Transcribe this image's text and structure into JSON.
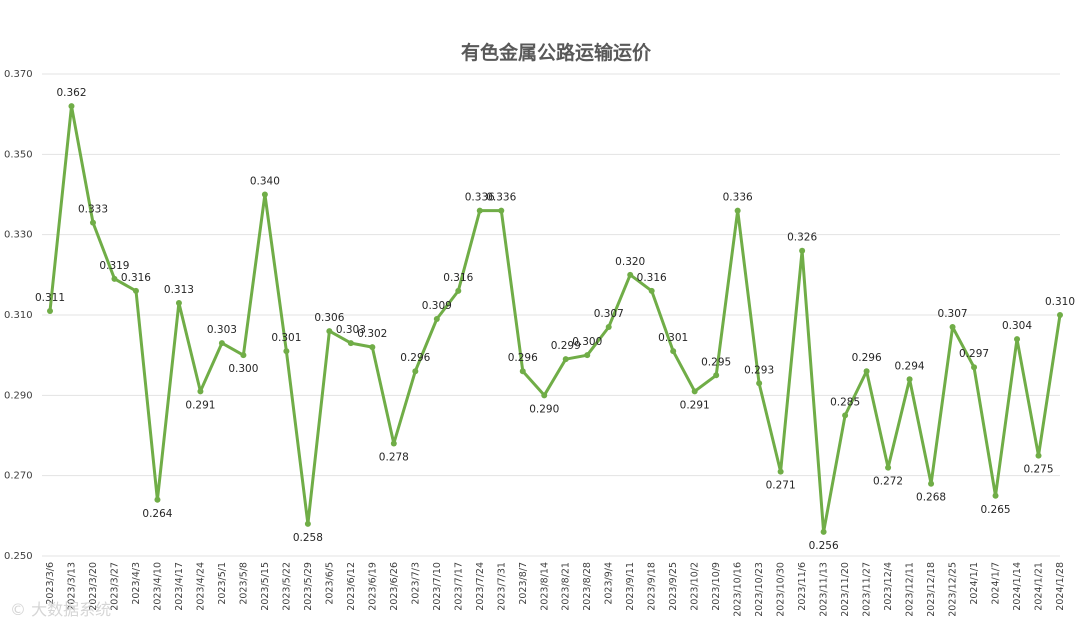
{
  "chart_data": {
    "type": "line",
    "title": "有色金属公路运输运价",
    "xlabel": "",
    "ylabel": "",
    "ylim": [
      0.25,
      0.37
    ],
    "yticks": [
      "0.250",
      "0.270",
      "0.290",
      "0.310",
      "0.330",
      "0.350",
      "0.370"
    ],
    "grid": true,
    "legend": "none",
    "series_color": "#70ad47",
    "categories": [
      "2023/3/6",
      "2023/3/13",
      "2023/3/20",
      "2023/3/27",
      "2023/4/3",
      "2023/4/10",
      "2023/4/17",
      "2023/4/24",
      "2023/5/1",
      "2023/5/8",
      "2023/5/15",
      "2023/5/22",
      "2023/5/29",
      "2023/6/5",
      "2023/6/12",
      "2023/6/19",
      "2023/6/26",
      "2023/7/3",
      "2023/7/10",
      "2023/7/17",
      "2023/7/24",
      "2023/7/31",
      "2023/8/7",
      "2023/8/14",
      "2023/8/21",
      "2023/8/28",
      "2023/9/4",
      "2023/9/11",
      "2023/9/18",
      "2023/9/25",
      "2023/10/2",
      "2023/10/9",
      "2023/10/16",
      "2023/10/23",
      "2023/10/30",
      "2023/11/6",
      "2023/11/13",
      "2023/11/20",
      "2023/11/27",
      "2023/12/4",
      "2023/12/11",
      "2023/12/18",
      "2023/12/25",
      "2024/1/1",
      "2024/1/7",
      "2024/1/14",
      "2024/1/21",
      "2024/1/28"
    ],
    "series": [
      {
        "values": [
          0.311,
          0.362,
          0.333,
          0.319,
          0.316,
          0.264,
          0.313,
          0.291,
          0.303,
          0.3,
          0.34,
          0.301,
          0.258,
          0.306,
          0.303,
          0.302,
          0.278,
          0.296,
          0.309,
          0.316,
          0.336,
          0.336,
          0.296,
          0.29,
          0.299,
          0.3,
          0.307,
          0.32,
          0.316,
          0.301,
          0.291,
          0.295,
          0.336,
          0.293,
          0.271,
          0.326,
          0.256,
          0.285,
          0.296,
          0.272,
          0.294,
          0.268,
          0.307,
          0.297,
          0.265,
          0.304,
          0.275,
          0.31
        ]
      }
    ],
    "data_labels": [
      "0.311",
      "0.362",
      "0.333",
      "0.319",
      "0.316",
      "0.264",
      "0.313",
      "0.291",
      "0.303",
      "0.300",
      "0.340",
      "0.301",
      "0.258",
      "0.306",
      "0.303",
      "0.302",
      "0.278",
      "0.296",
      "0.309",
      "0.316",
      "0.336",
      "0.336",
      "0.296",
      "0.290",
      "0.299",
      "0.300",
      "0.307",
      "0.320",
      "0.316",
      "0.301",
      "0.291",
      "0.295",
      "0.336",
      "0.293",
      "0.271",
      "0.326",
      "0.256",
      "0.285",
      "0.296",
      "0.272",
      "0.294",
      "0.268",
      "0.307",
      "0.297",
      "0.265",
      "0.304",
      "0.275",
      "0.310"
    ]
  },
  "watermark": "© 大数据系统"
}
